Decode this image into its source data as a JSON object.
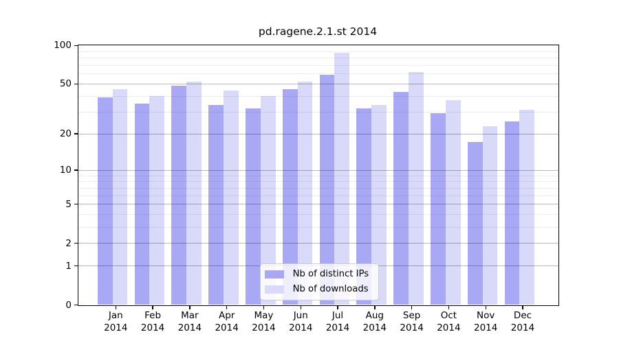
{
  "chart_data": {
    "type": "bar",
    "title": "pd.ragene.2.1.st 2014",
    "categories": [
      "Jan",
      "Feb",
      "Mar",
      "Apr",
      "May",
      "Jun",
      "Jul",
      "Aug",
      "Sep",
      "Oct",
      "Nov",
      "Dec"
    ],
    "year_label": "2014",
    "series": [
      {
        "name": "Nb of distinct IPs",
        "color": "#a8a8f4",
        "values": [
          39,
          35,
          48,
          34,
          32,
          45,
          59,
          32,
          43,
          29,
          17,
          25
        ]
      },
      {
        "name": "Nb of downloads",
        "color": "#d9d9f9",
        "values": [
          45,
          40,
          52,
          44,
          40,
          52,
          87,
          34,
          62,
          37,
          23,
          31
        ]
      }
    ],
    "yscale": "log1p",
    "ylim": [
      0,
      100
    ],
    "ytick_labels": [
      0,
      1,
      2,
      5,
      10,
      20,
      50,
      100
    ],
    "yticks_minor": [
      3,
      4,
      6,
      7,
      8,
      9,
      30,
      40,
      60,
      70,
      80,
      90
    ],
    "grid": true,
    "legend_position": "lower center inside",
    "colors": {
      "axis": "#000000",
      "grid_major": "#b0b0b0",
      "grid_minor": "#ececec"
    }
  }
}
